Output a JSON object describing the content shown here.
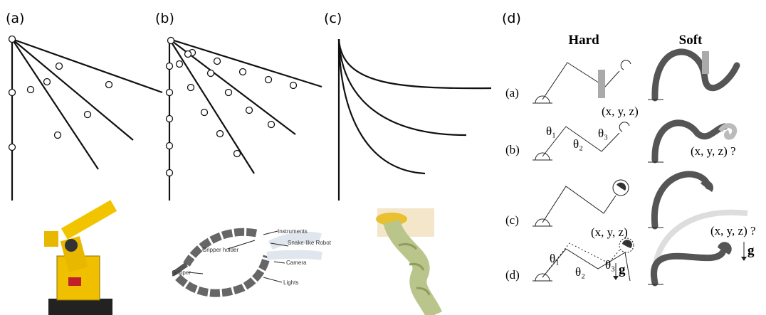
{
  "panels": {
    "a": "(a)",
    "b": "(b)",
    "c": "(c)",
    "d": "(d)"
  },
  "snake_robot_labels": [
    "Instruments",
    "Gripper holder",
    "Snake-like Robot",
    "Camera",
    "Gripper",
    "Lights"
  ],
  "comparison": {
    "headers": [
      "Hard",
      "Soft"
    ],
    "rows": [
      "(a)",
      "(b)",
      "(c)",
      "(d)"
    ],
    "row_b": {
      "hard_target": "(x, y, z)",
      "thetas": [
        "θ₁",
        "θ₂",
        "θ₃"
      ],
      "soft_target": "(x, y, z) ?"
    },
    "row_d": {
      "hard_target": "(x, y, z)",
      "thetas": [
        "θ₁",
        "θ₂",
        "θ₃"
      ],
      "soft_target": "(x, y, z) ?",
      "gravity": [
        "g",
        "g"
      ]
    }
  }
}
